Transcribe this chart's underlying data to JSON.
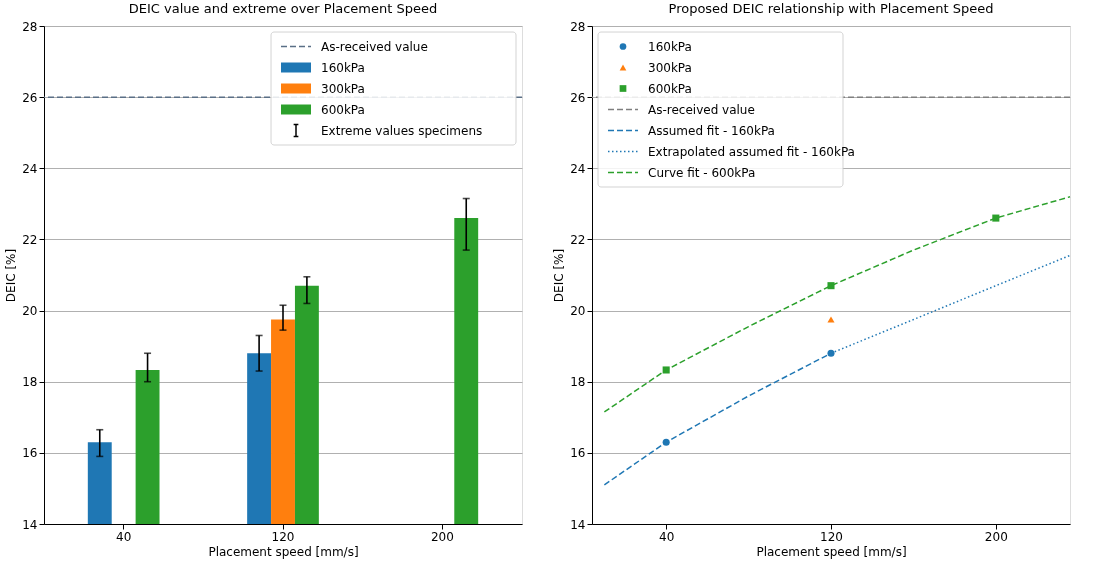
{
  "chart_data": [
    {
      "type": "bar",
      "title": "DEIC value and extreme over Placement Speed",
      "xlabel": "Placement speed [mm/s]",
      "ylabel": "DEIC [%]",
      "categories": [
        "40",
        "120",
        "200"
      ],
      "series": [
        {
          "name": "160kPa",
          "color": "#1f77b4",
          "values": [
            16.3,
            18.8,
            null
          ],
          "errors": [
            [
              15.9,
              16.65
            ],
            [
              18.3,
              19.3
            ],
            null
          ]
        },
        {
          "name": "300kPa",
          "color": "#ff7f0e",
          "values": [
            null,
            19.75,
            null
          ],
          "errors": [
            null,
            [
              19.45,
              20.15
            ],
            null
          ]
        },
        {
          "name": "600kPa",
          "color": "#2ca02c",
          "values": [
            18.33,
            20.7,
            22.6
          ],
          "errors": [
            [
              18.0,
              18.8
            ],
            [
              20.2,
              20.95
            ],
            [
              21.7,
              23.15
            ]
          ]
        }
      ],
      "ref_lines": [
        {
          "axis": "y",
          "value": 26,
          "label": "As-received value",
          "color": "#5a6f86",
          "line_style": "dashed"
        }
      ],
      "annotations": [
        "Extreme values specimens"
      ],
      "ylim": [
        14,
        28
      ],
      "yticks": [
        14,
        16,
        18,
        20,
        22,
        24,
        26,
        28
      ],
      "grid": "y",
      "legend": "top right"
    },
    {
      "type": "scatter",
      "title": "Proposed DEIC relationship with Placement Speed",
      "xlabel": "Placement speed [mm/s]",
      "ylabel": "DEIC [%]",
      "series": [
        {
          "name": "160kPa",
          "color": "#1f77b4",
          "marker": "circle",
          "x": [
            40,
            120
          ],
          "values": [
            16.3,
            18.8
          ]
        },
        {
          "name": "300kPa",
          "color": "#ff7f0e",
          "marker": "triangle",
          "x": [
            120
          ],
          "values": [
            19.75
          ]
        },
        {
          "name": "600kPa",
          "color": "#2ca02c",
          "marker": "square",
          "x": [
            40,
            120,
            200
          ],
          "values": [
            18.33,
            20.7,
            22.6
          ]
        },
        {
          "name": "Assumed fit - 160kPa",
          "type": "line",
          "color": "#1f77b4",
          "line_style": "dashed",
          "x": [
            10,
            40,
            80,
            120
          ],
          "values": [
            15.1,
            16.3,
            17.6,
            18.8
          ]
        },
        {
          "name": "Extrapolated assumed fit - 160kPa",
          "type": "line",
          "color": "#1f77b4",
          "line_style": "dotted",
          "x": [
            120,
            158,
            200,
            236
          ],
          "values": [
            18.8,
            19.7,
            20.7,
            21.55
          ]
        },
        {
          "name": "Curve fit - 600kPa",
          "type": "line",
          "color": "#2ca02c",
          "line_style": "dashed",
          "x": [
            10,
            40,
            80,
            120,
            160,
            200,
            236
          ],
          "values": [
            17.15,
            18.33,
            19.55,
            20.7,
            21.7,
            22.6,
            23.2
          ]
        }
      ],
      "ref_lines": [
        {
          "axis": "y",
          "value": 26,
          "label": "As-received value",
          "color": "#7f7f7f",
          "line_style": "dashed"
        }
      ],
      "xlim": [
        4,
        236
      ],
      "xticks": [
        40,
        120,
        200
      ],
      "ylim": [
        14,
        28
      ],
      "yticks": [
        14,
        16,
        18,
        20,
        22,
        24,
        26,
        28
      ],
      "grid": "y",
      "legend": "top left"
    }
  ]
}
